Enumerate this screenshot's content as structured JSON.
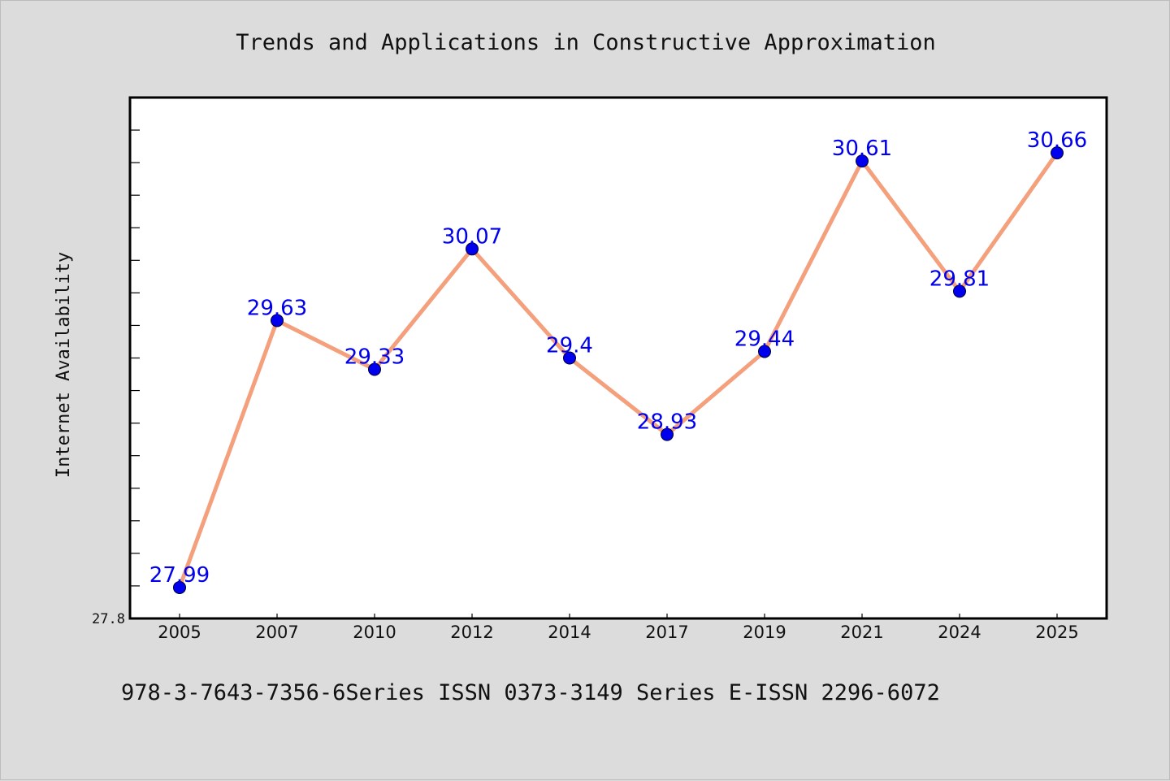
{
  "page": {
    "title": "Trends and Applications in Constructive Approximation",
    "footer": "978-3-7643-7356-6Series ISSN 0373-3149 Series E-ISSN 2296-6072"
  },
  "colors": {
    "background": "#dcdcdc",
    "plot_background": "#ffffff",
    "line": "#f4a07c",
    "marker": "#0000ee",
    "data_label": "#0000ee"
  },
  "chart_data": {
    "type": "line",
    "title": "Trends and Applications in Constructive Approximation",
    "xlabel": "",
    "ylabel": "Internet Availability",
    "categories": [
      "2005",
      "2007",
      "2010",
      "2012",
      "2014",
      "2017",
      "2019",
      "2021",
      "2024",
      "2025"
    ],
    "values": [
      27.99,
      29.63,
      29.33,
      30.07,
      29.4,
      28.93,
      29.44,
      30.61,
      29.81,
      30.66
    ],
    "data_labels": [
      "27.99",
      "29.63",
      "29.33",
      "30.07",
      "29.4",
      "28.93",
      "29.44",
      "30.61",
      "29.81",
      "30.66"
    ],
    "ylim": [
      27.8,
      31.0
    ],
    "y_tick_labels": [
      "27.8"
    ],
    "y_minor_step": 0.2,
    "grid": false,
    "legend": "none",
    "markers": true
  }
}
